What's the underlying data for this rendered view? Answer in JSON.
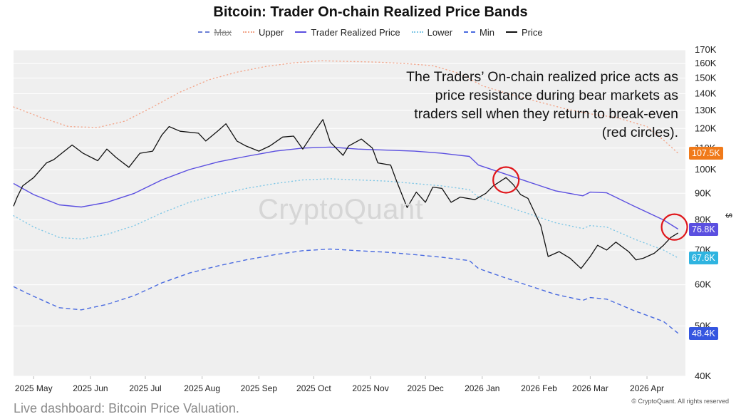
{
  "title": "Bitcoin: Trader On-chain Realized Price Bands",
  "legend": [
    {
      "key": "max",
      "label": "Max",
      "color": "#6b7fd6",
      "dash": "6,4",
      "disabled": true
    },
    {
      "key": "upper",
      "label": "Upper",
      "color": "#f2a58a",
      "dash": "1,4",
      "disabled": false
    },
    {
      "key": "trp",
      "label": "Trader Realized Price",
      "color": "#5b4fe0",
      "dash": "",
      "disabled": false
    },
    {
      "key": "lower",
      "label": "Lower",
      "color": "#7fc7e6",
      "dash": "1,4",
      "disabled": false
    },
    {
      "key": "min",
      "label": "Min",
      "color": "#4a6be0",
      "dash": "6,4",
      "disabled": false
    },
    {
      "key": "price",
      "label": "Price",
      "color": "#111111",
      "dash": "",
      "disabled": false
    }
  ],
  "annotation": {
    "lines": [
      "The Traders’ On-chain realized price acts as",
      "price resistance during bear markets as",
      "traders sell when they return to break-even",
      "(red circles)."
    ]
  },
  "watermark": "CryptoQuant",
  "caption": "Live dashboard: Bitcoin Price Valuation.",
  "copyright": "© CryptoQuant. All rights reserved",
  "badges": [
    {
      "key": "upper",
      "text": "107.5K",
      "value": 107500,
      "color": "#f07a1a"
    },
    {
      "key": "trp",
      "text": "76.8K",
      "value": 76800,
      "color": "#5b4fe0"
    },
    {
      "key": "lower",
      "text": "67.6K",
      "value": 67600,
      "color": "#2fb4e0"
    },
    {
      "key": "min",
      "text": "48.4K",
      "value": 48400,
      "color": "#3556e0"
    }
  ],
  "chart_data": {
    "type": "line",
    "title": "Bitcoin: Trader On-chain Realized Price Bands",
    "y_scale": "log",
    "ylim": [
      40000,
      170000
    ],
    "y_unit_label": "$",
    "y_ticks": [
      {
        "value": 170000,
        "label": "170K"
      },
      {
        "value": 160000,
        "label": "160K"
      },
      {
        "value": 150000,
        "label": "150K"
      },
      {
        "value": 140000,
        "label": "140K"
      },
      {
        "value": 130000,
        "label": "130K"
      },
      {
        "value": 120000,
        "label": "120K"
      },
      {
        "value": 110000,
        "label": "110K"
      },
      {
        "value": 100000,
        "label": "100K"
      },
      {
        "value": 90000,
        "label": "90K"
      },
      {
        "value": 80000,
        "label": "80K"
      },
      {
        "value": 70000,
        "label": "70K"
      },
      {
        "value": 60000,
        "label": "60K"
      },
      {
        "value": 50000,
        "label": "50K"
      },
      {
        "value": 40000,
        "label": "40K"
      }
    ],
    "xlim": [
      "2025-04-20",
      "2026-04-22"
    ],
    "x_ticks": [
      {
        "date": "2025-05-01",
        "label": "2025 May"
      },
      {
        "date": "2025-06-01",
        "label": "2025 Jun"
      },
      {
        "date": "2025-07-01",
        "label": "2025 Jul"
      },
      {
        "date": "2025-08-01",
        "label": "2025 Aug"
      },
      {
        "date": "2025-09-01",
        "label": "2025 Sep"
      },
      {
        "date": "2025-10-01",
        "label": "2025 Oct"
      },
      {
        "date": "2025-11-01",
        "label": "2025 Nov"
      },
      {
        "date": "2025-12-01",
        "label": "2025 Dec"
      },
      {
        "date": "2026-01-01",
        "label": "2026 Jan"
      },
      {
        "date": "2026-02-01",
        "label": "2026 Feb"
      },
      {
        "date": "2026-03-01",
        "label": "2026 Mar"
      },
      {
        "date": "2026-04-01",
        "label": "2026 Apr"
      }
    ],
    "series": [
      {
        "key": "upper",
        "name": "Upper",
        "points": [
          [
            "2025-04-20",
            132000
          ],
          [
            "2025-05-05",
            126000
          ],
          [
            "2025-05-20",
            121000
          ],
          [
            "2025-06-05",
            120500
          ],
          [
            "2025-06-20",
            124000
          ],
          [
            "2025-07-05",
            132000
          ],
          [
            "2025-07-20",
            141000
          ],
          [
            "2025-08-05",
            149000
          ],
          [
            "2025-08-20",
            154000
          ],
          [
            "2025-09-05",
            158000
          ],
          [
            "2025-09-20",
            160500
          ],
          [
            "2025-10-05",
            162000
          ],
          [
            "2025-10-20",
            161500
          ],
          [
            "2025-11-05",
            161000
          ],
          [
            "2025-11-20",
            160000
          ],
          [
            "2025-12-05",
            158500
          ],
          [
            "2025-12-20",
            153000
          ],
          [
            "2026-01-01",
            145000
          ],
          [
            "2026-01-15",
            140000
          ],
          [
            "2026-02-01",
            135000
          ],
          [
            "2026-02-15",
            131000
          ],
          [
            "2026-03-01",
            128000
          ],
          [
            "2026-03-15",
            126000
          ],
          [
            "2026-04-01",
            121000
          ],
          [
            "2026-04-10",
            114000
          ],
          [
            "2026-04-18",
            107500
          ]
        ]
      },
      {
        "key": "trp",
        "name": "Trader Realized Price",
        "points": [
          [
            "2025-04-20",
            94000
          ],
          [
            "2025-05-01",
            89500
          ],
          [
            "2025-05-15",
            85500
          ],
          [
            "2025-05-27",
            84700
          ],
          [
            "2025-06-10",
            86500
          ],
          [
            "2025-06-25",
            90000
          ],
          [
            "2025-07-10",
            95500
          ],
          [
            "2025-07-25",
            100000
          ],
          [
            "2025-08-10",
            103500
          ],
          [
            "2025-08-25",
            106000
          ],
          [
            "2025-09-10",
            108500
          ],
          [
            "2025-09-25",
            110000
          ],
          [
            "2025-10-10",
            110500
          ],
          [
            "2025-10-25",
            109500
          ],
          [
            "2025-11-10",
            109000
          ],
          [
            "2025-11-25",
            108500
          ],
          [
            "2025-12-10",
            107500
          ],
          [
            "2025-12-25",
            106000
          ],
          [
            "2025-12-30",
            102000
          ],
          [
            "2026-01-10",
            99000
          ],
          [
            "2026-01-25",
            95000
          ],
          [
            "2026-02-10",
            91000
          ],
          [
            "2026-02-25",
            89000
          ],
          [
            "2026-03-01",
            90500
          ],
          [
            "2026-03-10",
            90200
          ],
          [
            "2026-03-25",
            85000
          ],
          [
            "2026-04-10",
            80000
          ],
          [
            "2026-04-18",
            76800
          ]
        ]
      },
      {
        "key": "lower",
        "name": "Lower",
        "points": [
          [
            "2025-04-20",
            81500
          ],
          [
            "2025-05-01",
            77500
          ],
          [
            "2025-05-15",
            74000
          ],
          [
            "2025-05-27",
            73500
          ],
          [
            "2025-06-10",
            75000
          ],
          [
            "2025-06-25",
            78000
          ],
          [
            "2025-07-10",
            82500
          ],
          [
            "2025-07-25",
            86500
          ],
          [
            "2025-08-10",
            89500
          ],
          [
            "2025-08-25",
            92000
          ],
          [
            "2025-09-10",
            94000
          ],
          [
            "2025-09-25",
            95500
          ],
          [
            "2025-10-10",
            96000
          ],
          [
            "2025-10-25",
            95500
          ],
          [
            "2025-11-10",
            95000
          ],
          [
            "2025-11-25",
            94000
          ],
          [
            "2025-12-10",
            93000
          ],
          [
            "2025-12-25",
            91500
          ],
          [
            "2025-12-30",
            88500
          ],
          [
            "2026-01-10",
            86000
          ],
          [
            "2026-01-25",
            82500
          ],
          [
            "2026-02-10",
            79000
          ],
          [
            "2026-02-25",
            77000
          ],
          [
            "2026-03-01",
            78000
          ],
          [
            "2026-03-10",
            77500
          ],
          [
            "2026-03-25",
            73500
          ],
          [
            "2026-04-10",
            70000
          ],
          [
            "2026-04-18",
            67600
          ]
        ]
      },
      {
        "key": "min",
        "name": "Min",
        "points": [
          [
            "2025-04-20",
            59500
          ],
          [
            "2025-05-01",
            57000
          ],
          [
            "2025-05-15",
            54200
          ],
          [
            "2025-05-27",
            53700
          ],
          [
            "2025-06-10",
            55000
          ],
          [
            "2025-06-25",
            57200
          ],
          [
            "2025-07-10",
            60500
          ],
          [
            "2025-07-25",
            63200
          ],
          [
            "2025-08-10",
            65300
          ],
          [
            "2025-08-25",
            67000
          ],
          [
            "2025-09-10",
            68600
          ],
          [
            "2025-09-25",
            69800
          ],
          [
            "2025-10-10",
            70300
          ],
          [
            "2025-10-25",
            69800
          ],
          [
            "2025-11-10",
            69300
          ],
          [
            "2025-11-25",
            68600
          ],
          [
            "2025-12-10",
            67800
          ],
          [
            "2025-12-25",
            66800
          ],
          [
            "2025-12-30",
            64500
          ],
          [
            "2026-01-10",
            62500
          ],
          [
            "2026-01-25",
            60000
          ],
          [
            "2026-02-10",
            57500
          ],
          [
            "2026-02-25",
            56000
          ],
          [
            "2026-03-01",
            56700
          ],
          [
            "2026-03-10",
            56300
          ],
          [
            "2026-03-25",
            53500
          ],
          [
            "2026-04-10",
            51000
          ],
          [
            "2026-04-18",
            48400
          ]
        ]
      },
      {
        "key": "price",
        "name": "Price",
        "points": [
          [
            "2025-04-20",
            85000
          ],
          [
            "2025-04-22",
            88500
          ],
          [
            "2025-04-25",
            93000
          ],
          [
            "2025-05-01",
            96500
          ],
          [
            "2025-05-08",
            103000
          ],
          [
            "2025-05-12",
            104500
          ],
          [
            "2025-05-22",
            111500
          ],
          [
            "2025-05-28",
            107500
          ],
          [
            "2025-06-05",
            104000
          ],
          [
            "2025-06-10",
            109500
          ],
          [
            "2025-06-15",
            105500
          ],
          [
            "2025-06-22",
            101000
          ],
          [
            "2025-06-28",
            107500
          ],
          [
            "2025-07-05",
            108500
          ],
          [
            "2025-07-10",
            116500
          ],
          [
            "2025-07-14",
            121000
          ],
          [
            "2025-07-20",
            118500
          ],
          [
            "2025-07-30",
            117500
          ],
          [
            "2025-08-03",
            113500
          ],
          [
            "2025-08-10",
            119000
          ],
          [
            "2025-08-14",
            122500
          ],
          [
            "2025-08-20",
            113500
          ],
          [
            "2025-08-25",
            111000
          ],
          [
            "2025-09-01",
            108500
          ],
          [
            "2025-09-07",
            111000
          ],
          [
            "2025-09-14",
            115500
          ],
          [
            "2025-09-20",
            116000
          ],
          [
            "2025-09-25",
            109500
          ],
          [
            "2025-10-01",
            118000
          ],
          [
            "2025-10-06",
            124800
          ],
          [
            "2025-10-10",
            113000
          ],
          [
            "2025-10-17",
            106500
          ],
          [
            "2025-10-20",
            111000
          ],
          [
            "2025-10-27",
            114500
          ],
          [
            "2025-11-02",
            110000
          ],
          [
            "2025-11-05",
            103000
          ],
          [
            "2025-11-12",
            102000
          ],
          [
            "2025-11-15",
            95500
          ],
          [
            "2025-11-21",
            84500
          ],
          [
            "2025-11-26",
            90500
          ],
          [
            "2025-12-01",
            86500
          ],
          [
            "2025-12-05",
            92500
          ],
          [
            "2025-12-10",
            92000
          ],
          [
            "2025-12-15",
            86500
          ],
          [
            "2025-12-20",
            88500
          ],
          [
            "2025-12-28",
            87500
          ],
          [
            "2026-01-03",
            90000
          ],
          [
            "2026-01-07",
            93000
          ],
          [
            "2026-01-14",
            96500
          ],
          [
            "2026-01-18",
            93500
          ],
          [
            "2026-01-22",
            89500
          ],
          [
            "2026-01-26",
            88000
          ],
          [
            "2026-02-02",
            78000
          ],
          [
            "2026-02-06",
            68000
          ],
          [
            "2026-02-12",
            69500
          ],
          [
            "2026-02-18",
            67500
          ],
          [
            "2026-02-24",
            64500
          ],
          [
            "2026-03-01",
            68000
          ],
          [
            "2026-03-05",
            71500
          ],
          [
            "2026-03-10",
            70000
          ],
          [
            "2026-03-15",
            72500
          ],
          [
            "2026-03-22",
            69500
          ],
          [
            "2026-03-26",
            67000
          ],
          [
            "2026-03-30",
            67500
          ],
          [
            "2026-04-05",
            69000
          ],
          [
            "2026-04-10",
            71500
          ],
          [
            "2026-04-14",
            74000
          ],
          [
            "2026-04-18",
            75500
          ]
        ]
      }
    ],
    "highlights": [
      {
        "date": "2026-01-14",
        "value": 95500,
        "label": "red circle"
      },
      {
        "date": "2026-04-16",
        "value": 77500,
        "label": "red circle"
      }
    ]
  }
}
